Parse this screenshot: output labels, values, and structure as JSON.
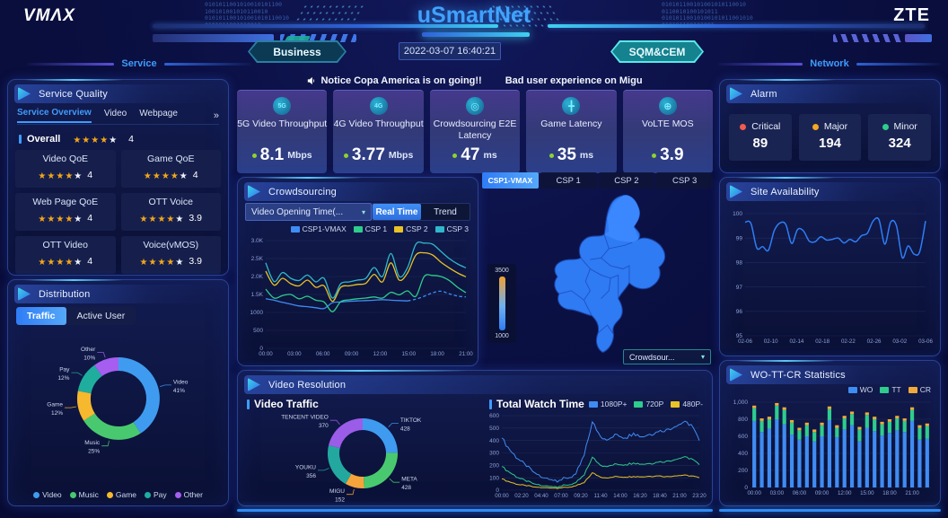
{
  "header": {
    "logo_left": "VMΛX",
    "title": "uSmartNet",
    "logo_right": "ZTE",
    "business_label": "Business",
    "timestamp": "2022-03-07 16:40:21",
    "sqm_label": "SQM&CEM",
    "service_label": "Service",
    "network_label": "Network",
    "binary_left": "0101011001010010101100\n100101001010110010\n010101100101001010110010\n0101011001010010",
    "binary_right": "010101100101001010110010\n0110010100101011\n01010110010100101011001010\n010101100101001"
  },
  "notice": {
    "text_1": "Notice Copa America is on going!!",
    "text_2": "Bad user experience on Migu"
  },
  "kpis": [
    {
      "icon": "5g-icon",
      "glyph": "5G",
      "label": "5G Video Throughput",
      "value": "8.1",
      "unit": "Mbps"
    },
    {
      "icon": "4g-icon",
      "glyph": "4G",
      "label": "4G Video Throughput",
      "value": "3.77",
      "unit": "Mbps"
    },
    {
      "icon": "crowdsourcing-icon",
      "glyph": "◎",
      "label": "Crowdsourcing E2E Latency",
      "value": "47",
      "unit": "ms"
    },
    {
      "icon": "game-latency-icon",
      "glyph": "╋",
      "label": "Game Latency",
      "value": "35",
      "unit": "ms"
    },
    {
      "icon": "volte-icon",
      "glyph": "⊕",
      "label": "VoLTE MOS",
      "value": "3.9",
      "unit": ""
    }
  ],
  "service_quality": {
    "title": "Service Quality",
    "tabs": [
      {
        "label": "Service Overview",
        "active": true
      },
      {
        "label": "Video",
        "active": false
      },
      {
        "label": "Webpage",
        "active": false
      }
    ],
    "more_icon": "»",
    "overall": {
      "label": "Overall",
      "value": "4",
      "stars_filled": 4,
      "stars_total": 5
    },
    "cards": [
      {
        "label": "Video QoE",
        "value": "4",
        "stars_filled": 4,
        "stars_total": 5
      },
      {
        "label": "Game QoE",
        "value": "4",
        "stars_filled": 4,
        "stars_total": 5
      },
      {
        "label": "Web Page QoE",
        "value": "4",
        "stars_filled": 4,
        "stars_total": 5
      },
      {
        "label": "OTT Voice",
        "value": "3.9",
        "stars_filled": 4,
        "stars_total": 5
      },
      {
        "label": "OTT Video",
        "value": "4",
        "stars_filled": 4,
        "stars_total": 5
      },
      {
        "label": "Voice(vMOS)",
        "value": "3.9",
        "stars_filled": 4,
        "stars_total": 5
      }
    ]
  },
  "distribution": {
    "title": "Distribution",
    "tabs": [
      {
        "label": "Traffic",
        "active": true
      },
      {
        "label": "Active User",
        "active": false
      }
    ],
    "chart": {
      "type": "donut",
      "slices": [
        {
          "label": "Video",
          "value": 41,
          "label2": "41%",
          "color": "#3f9bf0"
        },
        {
          "label": "Music",
          "value": 25,
          "label2": "25%",
          "color": "#49c96f"
        },
        {
          "label": "Game",
          "value": 12,
          "label2": "12%",
          "color": "#f5b82e"
        },
        {
          "label": "Pay",
          "value": 12,
          "label2": "12%",
          "color": "#1fae9e"
        },
        {
          "label": "Other",
          "value": 10,
          "label2": "10%",
          "color": "#a55ef0"
        }
      ]
    }
  },
  "crowdsourcing": {
    "title": "Crowdsourcing",
    "dropdown_label": "Video Opening Time(...",
    "toggle": [
      {
        "label": "Real Time",
        "active": true
      },
      {
        "label": "Trend",
        "active": false
      }
    ],
    "chart": {
      "type": "line",
      "ymin": 0,
      "ymax": 3000,
      "y_ticks": [
        {
          "v": 0,
          "label": "0"
        },
        {
          "v": 500,
          "label": "500"
        },
        {
          "v": 1000,
          "label": "1000"
        },
        {
          "v": 1500,
          "label": "1.5K"
        },
        {
          "v": 2000,
          "label": "2.0K"
        },
        {
          "v": 2500,
          "label": "2.5K"
        },
        {
          "v": 3000,
          "label": "3.0K"
        }
      ],
      "x_labels": [
        "00:00",
        "03:00",
        "06:00",
        "09:00",
        "12:00",
        "15:00",
        "18:00",
        "21:00"
      ],
      "series": [
        {
          "name": "CSP1-VMAX",
          "color": "#3f8cf3",
          "smooth": true,
          "dash_from": 17,
          "values": [
            1380,
            1340,
            1280,
            1230,
            1180,
            1160,
            1130,
            1110,
            1270,
            1290,
            1310,
            1320,
            1330,
            1340,
            1355,
            1340,
            1330,
            1320,
            1370,
            1450,
            1545,
            1590,
            1520,
            1455,
            1430
          ]
        },
        {
          "name": "CSP 1",
          "color": "#2ecc8e",
          "smooth": true,
          "values": [
            1650,
            1400,
            1470,
            1500,
            1380,
            1450,
            1340,
            1290,
            1020,
            1300,
            1350,
            1380,
            1400,
            1430,
            1400,
            1560,
            1490,
            1600,
            1450,
            2000,
            2030,
            2000,
            1890,
            1700,
            1550
          ]
        },
        {
          "name": "CSP 2",
          "color": "#e8c227",
          "smooth": true,
          "values": [
            2150,
            1760,
            1950,
            1800,
            1740,
            1900,
            1700,
            1740,
            1310,
            1700,
            1740,
            1780,
            1810,
            2060,
            1850,
            2380,
            1900,
            2100,
            2600,
            2660,
            2600,
            2400,
            2240,
            2100,
            1990
          ]
        },
        {
          "name": "CSP 3",
          "color": "#2fb8c9",
          "smooth": true,
          "values": [
            2380,
            1860,
            2110,
            1950,
            1890,
            2040,
            1850,
            1950,
            1400,
            1800,
            1850,
            1900,
            1950,
            2250,
            2000,
            2640,
            2000,
            2250,
            2900,
            2930,
            2900,
            2700,
            2500,
            2350,
            2240
          ]
        }
      ]
    }
  },
  "map": {
    "tabs": [
      {
        "label": "CSP1-VMAX",
        "active": true
      },
      {
        "label": "CSP 1",
        "active": false
      },
      {
        "label": "CSP 2",
        "active": false
      },
      {
        "label": "CSP 3",
        "active": false
      }
    ],
    "scale_max": "3500",
    "scale_min": "1000",
    "dropdown_label": "Crowdsour..."
  },
  "video_resolution": {
    "title": "Video Resolution",
    "traffic_title": "Video Traffic",
    "watch_title": "Total Watch Time",
    "traffic_chart": {
      "type": "donut",
      "slices": [
        {
          "label": "TIKTOK",
          "value": 428,
          "label2": "428",
          "color": "#3f9bf0"
        },
        {
          "label": "META",
          "value": 428,
          "label2": "428",
          "color": "#49c96f"
        },
        {
          "label": "MIGU",
          "value": 152,
          "label2": "152",
          "color": "#f5a43b"
        },
        {
          "label": "YOUKU",
          "value": 356,
          "label2": "356",
          "color": "#23a8a0"
        },
        {
          "label": "TENCENT VIDEO",
          "value": 370,
          "label2": "370",
          "color": "#9b5ce8"
        }
      ]
    },
    "watch_chart": {
      "type": "line",
      "ymin": 0,
      "ymax": 600,
      "y_ticks": [
        {
          "v": 0,
          "label": "0"
        },
        {
          "v": 100,
          "label": "100"
        },
        {
          "v": 200,
          "label": "200"
        },
        {
          "v": 300,
          "label": "300"
        },
        {
          "v": 400,
          "label": "400"
        },
        {
          "v": 500,
          "label": "500"
        },
        {
          "v": 600,
          "label": "600"
        }
      ],
      "x_labels": [
        "00:00",
        "02:20",
        "04:40",
        "07:00",
        "09:20",
        "11:40",
        "14:00",
        "16:20",
        "18:40",
        "21:00",
        "23:20"
      ],
      "series": [
        {
          "name": "1080P+",
          "color": "#3f8cf3",
          "noise": 16,
          "values": [
            420,
            320,
            250,
            190,
            140,
            100,
            85,
            80,
            95,
            130,
            280,
            550,
            430,
            410,
            450,
            420,
            460,
            430,
            450,
            470,
            490,
            510,
            545,
            530,
            400
          ]
        },
        {
          "name": "720P",
          "color": "#2ecc8e",
          "noise": 9,
          "values": [
            190,
            140,
            100,
            70,
            50,
            35,
            30,
            30,
            40,
            60,
            120,
            265,
            200,
            195,
            210,
            205,
            220,
            210,
            215,
            225,
            235,
            245,
            265,
            255,
            205
          ]
        },
        {
          "name": "480P-",
          "color": "#e8c227",
          "noise": 5,
          "values": [
            90,
            65,
            45,
            35,
            25,
            20,
            18,
            18,
            22,
            35,
            60,
            140,
            105,
            100,
            110,
            105,
            110,
            108,
            112,
            115,
            110,
            115,
            120,
            115,
            100
          ]
        }
      ]
    }
  },
  "alarm": {
    "title": "Alarm",
    "items": [
      {
        "label": "Critical",
        "value": "89",
        "color": "#f25b4e"
      },
      {
        "label": "Major",
        "value": "194",
        "color": "#f5a623"
      },
      {
        "label": "Minor",
        "value": "324",
        "color": "#2ecc8e"
      }
    ]
  },
  "site_availability": {
    "title": "Site Availability",
    "chart": {
      "type": "line",
      "ymin": 95,
      "ymax": 100,
      "y_ticks": [
        {
          "v": 95,
          "label": "95"
        },
        {
          "v": 96,
          "label": "96"
        },
        {
          "v": 97,
          "label": "97"
        },
        {
          "v": 98,
          "label": "98"
        },
        {
          "v": 99,
          "label": "99"
        },
        {
          "v": 100,
          "label": "100"
        }
      ],
      "x_labels": [
        "02-06",
        "02-10",
        "02-14",
        "02-18",
        "02-22",
        "02-26",
        "03-02",
        "03-06"
      ],
      "series": [
        {
          "name": "Site Availability",
          "color": "#2f7df5",
          "smooth": true,
          "values": [
            99.65,
            99.6,
            98.6,
            98.65,
            98.5,
            99.3,
            99.62,
            99.55,
            98.78,
            99.35,
            99.3,
            98.88,
            98.85,
            99.05,
            98.92,
            98.95,
            99.0,
            98.8,
            98.95,
            98.85,
            99.1,
            99.2,
            99.7,
            99.75,
            98.75,
            99.65,
            99.5,
            98.2,
            98.68,
            98.35,
            98.45,
            99.7
          ]
        }
      ]
    }
  },
  "wo_tt_cr": {
    "title": "WO-TT-CR Statistics",
    "chart": {
      "type": "stacked_bar",
      "ymin": 0,
      "ymax": 1000,
      "y_ticks": [
        {
          "v": 0,
          "label": "0"
        },
        {
          "v": 200,
          "label": "200"
        },
        {
          "v": 400,
          "label": "400"
        },
        {
          "v": 600,
          "label": "600"
        },
        {
          "v": 800,
          "label": "800"
        },
        {
          "v": 1000,
          "label": "1,000"
        }
      ],
      "x_labels": [
        "00:00",
        "03:00",
        "06:00",
        "09:00",
        "12:00",
        "15:00",
        "18:00",
        "21:00"
      ],
      "label_every": 3,
      "series": [
        {
          "name": "WO",
          "color": "#3f8cf3",
          "values": [
            780,
            650,
            690,
            800,
            740,
            620,
            560,
            600,
            540,
            600,
            790,
            590,
            680,
            730,
            540,
            700,
            660,
            610,
            640,
            670,
            650,
            780,
            560,
            570
          ]
        },
        {
          "name": "TT",
          "color": "#2ecc8e",
          "values": [
            150,
            130,
            110,
            160,
            170,
            140,
            110,
            130,
            110,
            130,
            130,
            110,
            130,
            130,
            140,
            150,
            140,
            130,
            130,
            140,
            130,
            130,
            140,
            150
          ]
        },
        {
          "name": "CR",
          "color": "#f2a93b",
          "values": [
            30,
            30,
            30,
            30,
            30,
            30,
            30,
            30,
            30,
            30,
            30,
            30,
            30,
            30,
            30,
            30,
            30,
            30,
            30,
            30,
            30,
            30,
            30,
            30
          ]
        }
      ]
    }
  }
}
